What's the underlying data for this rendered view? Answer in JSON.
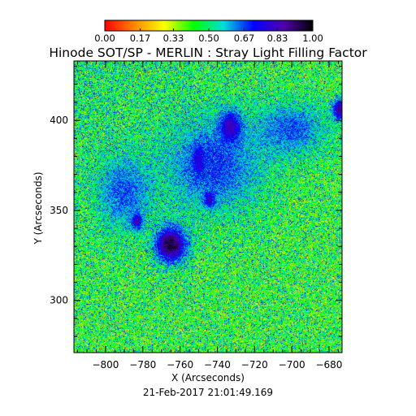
{
  "chart_data": {
    "type": "heatmap",
    "title": "Hinode SOT/SP - MERLIN : Stray Light Filling Factor",
    "xlabel": "X (Arcseconds)",
    "ylabel": "Y (Arcseconds)",
    "footer": "21-Feb-2017 21:01:49.169",
    "xlim": [
      -817,
      -673
    ],
    "ylim": [
      271,
      433
    ],
    "x_ticks": [
      -800,
      -780,
      -760,
      -740,
      -720,
      -700,
      -680
    ],
    "x_tick_labels": [
      "−800",
      "−780",
      "−760",
      "−740",
      "−720",
      "−700",
      "−680"
    ],
    "y_ticks": [
      300,
      350,
      400
    ],
    "y_tick_labels": [
      "300",
      "350",
      "400"
    ],
    "colorbar": {
      "min": 0.0,
      "max": 1.0,
      "ticks": [
        0.0,
        0.17,
        0.33,
        0.5,
        0.67,
        0.83,
        1.0
      ],
      "tick_labels": [
        "0.00",
        "0.17",
        "0.33",
        "0.50",
        "0.67",
        "0.83",
        "1.00"
      ],
      "colormap": [
        "#ff0000",
        "#ff8800",
        "#ffff00",
        "#00ff00",
        "#00dddd",
        "#0000ff",
        "#5000b0",
        "#000000"
      ]
    },
    "background_level": 0.45,
    "features": [
      {
        "kind": "sunspot",
        "x": -765,
        "y": 331,
        "sigma_x": 6,
        "sigma_y": 7,
        "level": 0.97
      },
      {
        "kind": "pore",
        "x": -783,
        "y": 344,
        "sigma_x": 2,
        "sigma_y": 3,
        "level": 0.9
      },
      {
        "kind": "pore",
        "x": -750,
        "y": 378,
        "sigma_x": 2,
        "sigma_y": 5,
        "level": 0.88
      },
      {
        "kind": "pore",
        "x": -733,
        "y": 396,
        "sigma_x": 4,
        "sigma_y": 6,
        "level": 0.9
      },
      {
        "kind": "pore",
        "x": -674,
        "y": 406,
        "sigma_x": 3,
        "sigma_y": 4,
        "level": 0.9
      },
      {
        "kind": "pore",
        "x": -744,
        "y": 356,
        "sigma_x": 2,
        "sigma_y": 3,
        "level": 0.86
      },
      {
        "kind": "plage",
        "x": -742,
        "y": 375,
        "sigma_x": 18,
        "sigma_y": 18,
        "level": 0.75
      },
      {
        "kind": "plage",
        "x": -790,
        "y": 360,
        "sigma_x": 10,
        "sigma_y": 14,
        "level": 0.72
      },
      {
        "kind": "plage",
        "x": -700,
        "y": 395,
        "sigma_x": 14,
        "sigma_y": 10,
        "level": 0.72
      }
    ]
  }
}
